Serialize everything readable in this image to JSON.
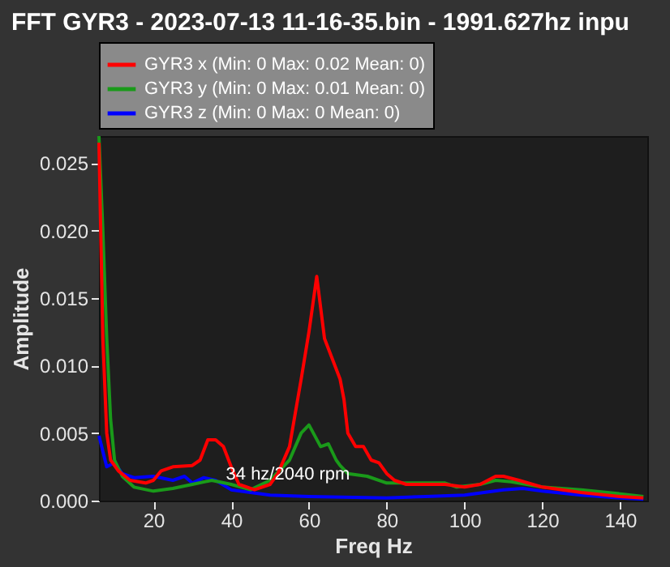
{
  "chart_data": {
    "type": "line",
    "title": "FFT GYR3 - 2023-07-13 11-16-35.bin - 1991.627hz inpu",
    "xlabel": "Freq Hz",
    "ylabel": "Amplitude",
    "xlim": [
      6,
      147
    ],
    "xticks": [
      20,
      40,
      60,
      80,
      100,
      120,
      140
    ],
    "ylim": [
      0,
      0.027
    ],
    "yticks": [
      {
        "value": 0,
        "label": "0.000"
      },
      {
        "value": 0.005,
        "label": "0.005"
      },
      {
        "value": 0.01,
        "label": "0.010"
      },
      {
        "value": 0.015,
        "label": "0.015"
      },
      {
        "value": 0.02,
        "label": "0.020"
      },
      {
        "value": 0.025,
        "label": "0.025"
      }
    ],
    "grid": false,
    "legend": "top",
    "marker": "none",
    "line_style": "solid",
    "annotations": [
      {
        "text": "34 hz/2040 rpm",
        "x": 34.9,
        "y": 0.0042
      }
    ],
    "series": [
      {
        "name": "GYR3 x (Min: 0 Max: 0.02 Mean: 0)",
        "color": "#ff0000",
        "x": [
          6,
          7,
          8,
          9,
          11,
          14,
          18,
          20,
          22,
          25,
          30,
          32,
          34,
          36,
          38,
          40,
          42,
          46,
          50,
          52,
          55,
          58,
          60,
          62,
          64,
          66,
          68,
          69,
          70,
          72,
          74,
          76,
          78,
          80,
          82,
          85,
          90,
          95,
          100,
          104,
          108,
          110,
          114,
          120,
          130,
          140,
          146
        ],
        "values": [
          0.0265,
          0.012,
          0.005,
          0.003,
          0.0022,
          0.0015,
          0.0013,
          0.0015,
          0.0022,
          0.0025,
          0.0026,
          0.003,
          0.0045,
          0.0045,
          0.004,
          0.0025,
          0.0012,
          0.0008,
          0.0012,
          0.002,
          0.004,
          0.009,
          0.0125,
          0.0166,
          0.012,
          0.0105,
          0.009,
          0.0075,
          0.005,
          0.004,
          0.004,
          0.003,
          0.0028,
          0.002,
          0.0015,
          0.0012,
          0.0012,
          0.0012,
          0.001,
          0.0012,
          0.0018,
          0.0018,
          0.0015,
          0.001,
          0.0006,
          0.0003,
          0.0002
        ]
      },
      {
        "name": "GYR3 y (Min: 0 Max: 0.01 Mean: 0)",
        "color": "#1a9a1a",
        "x": [
          6,
          7,
          8,
          9,
          10,
          12,
          15,
          20,
          25,
          30,
          35,
          40,
          45,
          50,
          55,
          58,
          60,
          63,
          65,
          67,
          68,
          70,
          75,
          80,
          90,
          95,
          98,
          104,
          108,
          112,
          120,
          130,
          140,
          146
        ],
        "values": [
          0.027,
          0.02,
          0.012,
          0.006,
          0.003,
          0.0018,
          0.001,
          0.0007,
          0.0009,
          0.0012,
          0.0015,
          0.0012,
          0.0008,
          0.0015,
          0.003,
          0.005,
          0.0056,
          0.004,
          0.0042,
          0.003,
          0.0026,
          0.002,
          0.0018,
          0.0013,
          0.0013,
          0.0013,
          0.001,
          0.0012,
          0.0015,
          0.0014,
          0.001,
          0.0008,
          0.0005,
          0.0003
        ]
      },
      {
        "name": "GYR3 z (Min: 0 Max: 0 Mean: 0)",
        "color": "#0000ff",
        "x": [
          6,
          8,
          10,
          12,
          15,
          20,
          25,
          28,
          30,
          33,
          36,
          40,
          50,
          60,
          80,
          90,
          100,
          110,
          115,
          120,
          130,
          140,
          146
        ],
        "values": [
          0.0048,
          0.0025,
          0.0028,
          0.002,
          0.0017,
          0.0018,
          0.0015,
          0.0018,
          0.0013,
          0.0017,
          0.0015,
          0.0008,
          0.0004,
          0.0003,
          0.0002,
          0.0003,
          0.0004,
          0.0008,
          0.0009,
          0.0007,
          0.0004,
          0.0002,
          0.0001
        ]
      }
    ]
  }
}
